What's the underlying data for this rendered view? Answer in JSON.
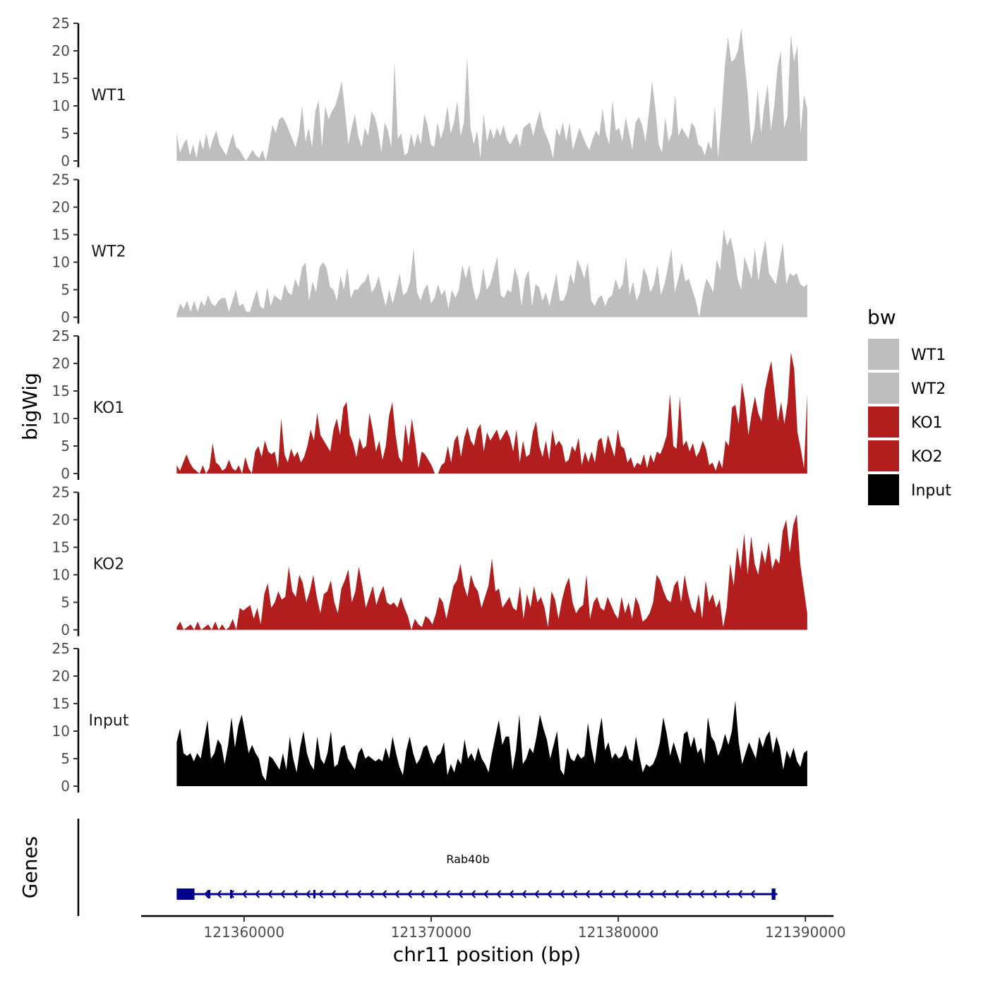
{
  "chart_data": {
    "type": "area",
    "chromosome": "chr11",
    "xlabel": "chr11 position (bp)",
    "ylabel": "bigWig",
    "xlim": [
      121354500,
      121391500
    ],
    "x_ticks": [
      121360000,
      121370000,
      121380000,
      121390000
    ],
    "x_tick_labels": [
      "121360000",
      "121370000",
      "121380000",
      "121390000"
    ],
    "ylim": [
      0,
      25
    ],
    "y_ticks": [
      0,
      5,
      10,
      15,
      20,
      25
    ],
    "y_tick_labels": [
      "0",
      "5",
      "10",
      "15",
      "20",
      "25"
    ],
    "track_range": [
      121356400,
      121390100
    ],
    "legend": {
      "title": "bw",
      "entries": [
        {
          "label": "WT1",
          "color": "#bebebe"
        },
        {
          "label": "WT2",
          "color": "#bebebe"
        },
        {
          "label": "KO1",
          "color": "#b21e1e"
        },
        {
          "label": "KO2",
          "color": "#b21e1e"
        },
        {
          "label": "Input",
          "color": "#000000"
        }
      ]
    },
    "series": [
      {
        "name": "WT1",
        "color": "#bebebe",
        "values": [
          5,
          1.5,
          3,
          4,
          1,
          3,
          0.5,
          4,
          2,
          5,
          2,
          4,
          5.5,
          3,
          2,
          1,
          3,
          5,
          2.5,
          2,
          1,
          0,
          1,
          2,
          1,
          0.5,
          2,
          0,
          3,
          6.5,
          5,
          7.5,
          8,
          7,
          5.5,
          4,
          2.5,
          5,
          10,
          3.5,
          6,
          2.5,
          9,
          11,
          2.5,
          10,
          7.5,
          9,
          10,
          12,
          14.5,
          9,
          3,
          6,
          8.5,
          4.5,
          2.5,
          6,
          4.5,
          9,
          8,
          5.5,
          1.5,
          7,
          5.5,
          2.5,
          18,
          4,
          5,
          1,
          1.5,
          5,
          2.5,
          5,
          3,
          8.5,
          6.5,
          3,
          2.5,
          7,
          4,
          6,
          10,
          5,
          7,
          11,
          4.5,
          7,
          19,
          6,
          3,
          5.5,
          0.5,
          8.5,
          3.5,
          6,
          4,
          6,
          4.5,
          6.5,
          4,
          3,
          4,
          5,
          2.5,
          6,
          6.5,
          7,
          4.5,
          7,
          9,
          6,
          4.5,
          3,
          0.5,
          6,
          4.5,
          7,
          3.5,
          7,
          2,
          4,
          6,
          4.5,
          3,
          2,
          4,
          5.5,
          4.5,
          9.5,
          5,
          3,
          11,
          5.5,
          6,
          3.5,
          8,
          5,
          2,
          7,
          8,
          6.5,
          3.5,
          8.5,
          14.5,
          9.5,
          3,
          1.5,
          8,
          3.5,
          5,
          12,
          4.5,
          6,
          5,
          4,
          7,
          6,
          3,
          2.5,
          1,
          3.5,
          2,
          10,
          0.5,
          8,
          17,
          22.5,
          18,
          18.5,
          20,
          24,
          18,
          12,
          3,
          6,
          13,
          5,
          10,
          14,
          5.5,
          10,
          17,
          20,
          6,
          8,
          23,
          18,
          21,
          5,
          12,
          9.5
        ]
      },
      {
        "name": "WT2",
        "color": "#bebebe",
        "values": [
          0.5,
          2.5,
          1.5,
          3,
          1,
          3,
          1,
          3,
          2,
          4,
          2.5,
          2,
          3,
          3.5,
          3.5,
          1,
          3,
          5,
          2,
          2.5,
          1,
          1,
          3,
          5,
          2,
          1.5,
          5.5,
          2,
          4,
          3.5,
          3,
          6,
          4.5,
          4,
          7,
          5.5,
          9,
          10,
          3,
          6.5,
          4.5,
          9,
          10,
          9,
          5.5,
          5,
          3,
          7.5,
          5,
          9,
          3.5,
          5,
          5,
          6,
          6.5,
          8,
          4.5,
          5.5,
          7.5,
          4.5,
          2,
          5,
          2.5,
          5,
          8,
          4,
          4.5,
          6.5,
          12.5,
          4.5,
          3,
          5,
          6,
          2.5,
          3.5,
          6,
          4,
          5,
          1.5,
          5,
          3.5,
          5,
          9.5,
          7,
          9.5,
          5.5,
          3,
          4.5,
          9,
          5,
          6,
          8.5,
          11,
          4,
          3.5,
          5,
          4.5,
          9,
          7,
          2,
          7,
          8.5,
          2,
          6,
          5.5,
          3,
          4.5,
          2,
          5,
          8,
          3,
          3,
          4.5,
          8,
          6,
          10.5,
          9,
          7,
          10,
          3,
          2,
          3.5,
          4,
          2,
          3.5,
          4,
          7,
          5,
          6,
          11,
          4,
          6.5,
          3,
          4.5,
          9,
          7.5,
          4.5,
          6,
          9.5,
          4,
          6,
          9,
          12.5,
          4.5,
          7,
          10,
          6.5,
          7,
          5,
          3,
          0,
          4,
          7,
          6,
          4.5,
          10.5,
          8.5,
          16,
          13,
          14.5,
          11.5,
          7,
          5,
          11,
          9,
          7,
          12.5,
          6.5,
          11,
          14,
          8,
          7,
          6,
          10,
          13.5,
          6,
          8,
          7.5,
          8,
          6,
          5.5,
          6
        ]
      },
      {
        "name": "KO1",
        "color": "#b21e1e",
        "values": [
          1.5,
          0.5,
          2,
          3.5,
          2,
          1,
          0.5,
          0,
          1.5,
          0,
          1,
          5.5,
          2,
          1.5,
          0.5,
          1,
          2.5,
          1,
          0.5,
          1.5,
          0,
          3,
          1,
          0,
          4,
          5,
          3,
          6,
          4,
          3.5,
          4,
          1,
          10,
          3.5,
          2,
          4.5,
          3,
          4,
          2,
          3,
          5,
          8,
          6,
          11,
          7,
          6,
          5,
          4,
          8,
          10,
          7,
          12,
          13,
          7,
          5.5,
          3,
          6.5,
          4.5,
          5,
          11,
          8,
          4,
          6,
          2.5,
          5,
          10.5,
          13,
          7,
          3,
          2,
          9,
          5,
          10,
          6,
          1,
          4,
          3.5,
          2.5,
          1.5,
          0,
          0,
          1.5,
          2,
          5,
          2,
          6,
          7,
          3,
          6.5,
          8.5,
          6,
          5,
          8,
          9,
          4,
          7.5,
          6,
          7,
          8,
          6,
          7,
          8,
          6.5,
          4,
          8,
          2,
          6,
          3,
          3.5,
          7.5,
          9.5,
          5,
          3,
          6,
          2.5,
          8,
          5,
          6,
          5,
          2,
          2.5,
          5,
          4,
          6.5,
          1.5,
          4,
          2,
          4,
          2,
          6,
          6.5,
          3.5,
          7,
          5,
          3,
          8,
          5,
          4.5,
          2,
          3,
          1,
          2,
          1.5,
          3.5,
          1,
          3.5,
          2,
          4,
          3.5,
          5,
          7,
          14.5,
          5,
          4.5,
          14,
          5,
          6,
          4,
          5.5,
          3,
          4,
          6,
          4.5,
          1.5,
          2,
          0.5,
          2.5,
          1,
          6,
          5,
          12,
          12.5,
          9,
          16.5,
          13,
          7,
          11,
          14,
          11,
          9.5,
          15,
          18,
          20.5,
          15,
          9.5,
          13,
          9,
          13,
          22,
          19,
          7.5,
          4.5,
          1,
          14.5
        ]
      },
      {
        "name": "KO2",
        "color": "#b21e1e",
        "values": [
          0.5,
          1.5,
          0,
          0.5,
          1,
          0,
          1.5,
          0,
          0.5,
          1,
          0,
          1.5,
          0,
          1,
          0,
          0.5,
          2,
          0,
          4,
          3.5,
          4,
          4.5,
          2,
          4,
          1,
          6.5,
          8.5,
          4,
          5,
          7,
          5.5,
          6,
          11.5,
          7,
          6,
          10,
          8.5,
          5,
          7,
          10,
          6,
          3,
          6.5,
          7,
          9,
          5,
          3,
          7.5,
          9,
          11,
          5,
          7,
          11.5,
          8,
          4,
          6,
          8,
          4.5,
          6.5,
          8,
          5,
          4.5,
          5,
          4,
          6,
          4,
          2.5,
          0,
          2,
          1,
          0.5,
          2.5,
          2,
          1,
          3,
          6,
          5,
          2,
          5,
          8,
          9,
          12,
          8,
          6,
          10,
          8,
          7,
          4,
          6,
          8,
          13,
          7,
          7.5,
          4,
          5,
          6,
          4,
          3.5,
          8,
          2,
          6.5,
          4,
          8,
          5,
          6,
          4,
          0.5,
          7,
          5.5,
          2,
          5.5,
          8,
          9.5,
          5,
          3,
          4,
          4.5,
          10,
          2,
          5,
          6,
          4,
          3.5,
          6,
          4.5,
          3,
          2,
          6,
          3,
          5,
          2,
          6,
          4.5,
          1.5,
          2,
          3,
          5,
          10,
          9,
          7,
          5.5,
          5,
          8,
          9,
          5,
          10,
          6.5,
          4,
          3,
          6.5,
          2,
          9,
          5,
          6.5,
          4,
          5.5,
          0.5,
          4,
          12,
          8,
          15,
          11,
          17.5,
          10,
          17,
          12,
          10,
          14.5,
          12,
          16,
          11,
          13,
          12,
          18,
          20,
          14,
          19,
          21,
          12,
          7.5,
          3
        ]
      },
      {
        "name": "Input",
        "color": "#000000",
        "values": [
          8,
          10.5,
          6,
          5.5,
          6,
          4.5,
          6,
          5,
          8.5,
          12,
          5,
          6,
          8.5,
          7.5,
          4,
          7.5,
          12.5,
          7,
          11,
          13,
          9.5,
          6,
          7.5,
          6,
          5,
          2,
          1,
          5.5,
          5,
          4,
          3,
          6,
          3,
          9,
          5,
          2.5,
          7,
          10,
          6,
          4,
          3,
          9,
          5,
          4,
          6,
          10,
          3.5,
          4,
          7,
          7.5,
          5,
          4,
          3,
          6,
          7,
          5,
          5.5,
          5,
          4.5,
          5,
          4.5,
          7,
          5,
          9,
          6,
          3.5,
          2,
          6.5,
          9,
          6,
          4,
          5,
          7,
          7.5,
          5.5,
          4,
          5.5,
          6,
          8,
          2,
          4,
          2.5,
          5,
          4,
          8.5,
          5,
          6,
          4.5,
          7,
          5,
          4,
          2.5,
          6,
          9,
          12,
          7.5,
          9,
          9,
          3,
          6.5,
          13,
          4,
          5,
          7,
          6,
          9,
          13,
          10.5,
          8.5,
          5,
          7.5,
          10,
          3,
          2,
          7,
          5,
          4.5,
          6,
          5,
          5.5,
          11.5,
          7,
          4,
          9,
          12.5,
          6.5,
          8,
          5,
          6,
          5,
          5.5,
          7.5,
          5,
          4.5,
          9,
          5.5,
          2.5,
          4,
          3.5,
          4,
          5.5,
          8,
          12.5,
          9.5,
          5.5,
          8,
          6,
          4,
          9.5,
          10,
          7,
          9,
          6,
          7,
          4,
          12.5,
          9,
          8,
          5.5,
          7,
          9.5,
          7.5,
          10,
          15.5,
          8,
          4,
          6,
          8,
          6.5,
          5,
          9,
          7,
          9,
          10,
          6,
          9,
          7,
          3,
          6.5,
          5,
          7,
          4.5,
          3.5,
          6,
          6.5
        ]
      }
    ],
    "gene": {
      "name": "Rab40b",
      "strand": "-",
      "start": 121356400,
      "end": 121388500,
      "exons": [
        [
          121356400,
          121357350
        ],
        [
          121358050,
          121358200
        ],
        [
          121359250,
          121359300
        ],
        [
          121363700,
          121363760
        ],
        [
          121388200,
          121388400
        ]
      ],
      "color": "#00008b",
      "track_label": "Genes"
    }
  }
}
